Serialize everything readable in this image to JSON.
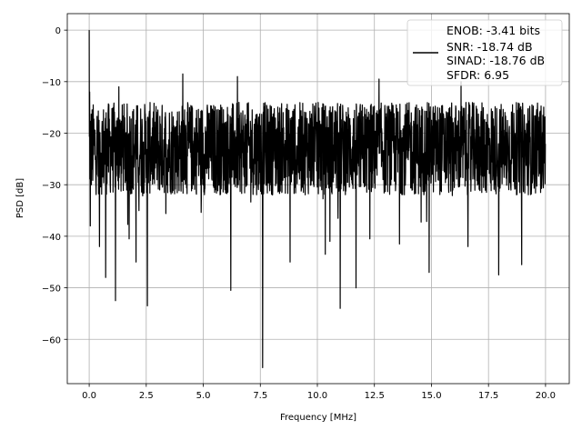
{
  "chart_data": {
    "type": "line",
    "title": "",
    "xlabel": "Frequency [MHz]",
    "ylabel": "PSD [dB]",
    "xlim": [
      -0.96,
      21.04
    ],
    "ylim": [
      -68.6,
      3.2
    ],
    "grid": true,
    "xticks": [
      0.0,
      2.5,
      5.0,
      7.5,
      10.0,
      12.5,
      15.0,
      17.5,
      20.0
    ],
    "xtick_labels": [
      "0.0",
      "2.5",
      "5.0",
      "7.5",
      "10.0",
      "12.5",
      "15.0",
      "17.5",
      "20.0"
    ],
    "yticks": [
      0,
      -10,
      -20,
      -30,
      -40,
      -50,
      -60
    ],
    "ytick_labels": [
      "0",
      "−10",
      "−20",
      "−30",
      "−40",
      "−50",
      "−60"
    ],
    "legend_placement": "top-right",
    "legend": [
      "ENOB: -3.41 bits",
      "SNR: -18.74 dB",
      "SINAD: -18.76 dB",
      "SFDR: 6.95"
    ],
    "series": [
      {
        "name": "PSD",
        "color": "#000000",
        "x_range": [
          0,
          20
        ],
        "num_points": 2048,
        "noise_floor_mean": -23,
        "noise_floor_spread": 10,
        "notable_points": [
          {
            "x": 0.0,
            "y": 0.0
          },
          {
            "x": 0.02,
            "y": -12
          },
          {
            "x": 0.05,
            "y": -38
          },
          {
            "x": 0.45,
            "y": -42
          },
          {
            "x": 0.72,
            "y": -48
          },
          {
            "x": 1.15,
            "y": -52.5
          },
          {
            "x": 1.75,
            "y": -40.5
          },
          {
            "x": 2.05,
            "y": -45
          },
          {
            "x": 2.55,
            "y": -53.5
          },
          {
            "x": 6.2,
            "y": -50.5
          },
          {
            "x": 7.6,
            "y": -65.5
          },
          {
            "x": 8.8,
            "y": -45
          },
          {
            "x": 10.35,
            "y": -43.5
          },
          {
            "x": 10.55,
            "y": -41
          },
          {
            "x": 11.0,
            "y": -54
          },
          {
            "x": 11.7,
            "y": -50
          },
          {
            "x": 12.3,
            "y": -40.5
          },
          {
            "x": 13.6,
            "y": -41.5
          },
          {
            "x": 14.9,
            "y": -47
          },
          {
            "x": 16.6,
            "y": -42
          },
          {
            "x": 17.95,
            "y": -47.5
          },
          {
            "x": 18.95,
            "y": -45.5
          },
          {
            "x": 1.3,
            "y": -11
          },
          {
            "x": 4.1,
            "y": -8.5
          },
          {
            "x": 6.5,
            "y": -9
          },
          {
            "x": 12.7,
            "y": -9.5
          },
          {
            "x": 16.3,
            "y": -10
          }
        ]
      }
    ]
  }
}
